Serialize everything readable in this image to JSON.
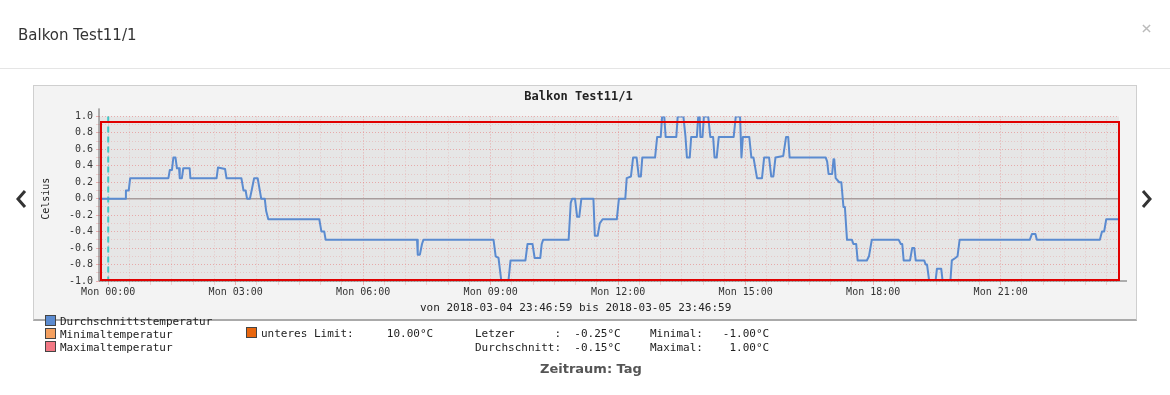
{
  "chart_data": {
    "type": "line",
    "title": "Balkon Test11/1",
    "ylabel": "Celsius",
    "xlim": [
      "2018-03-04T23:47",
      "2018-03-05T23:47"
    ],
    "xticks": [
      {
        "value": "2018-03-05T00:00",
        "label": "Mon 00:00"
      },
      {
        "value": "2018-03-05T00:30",
        "label": null
      },
      {
        "value": "2018-03-05T01:00",
        "label": null
      },
      {
        "value": "2018-03-05T01:30",
        "label": null
      },
      {
        "value": "2018-03-05T02:00",
        "label": null
      },
      {
        "value": "2018-03-05T02:30",
        "label": null
      },
      {
        "value": "2018-03-05T03:00",
        "label": "Mon 03:00"
      },
      {
        "value": "2018-03-05T03:30",
        "label": null
      },
      {
        "value": "2018-03-05T04:00",
        "label": null
      },
      {
        "value": "2018-03-05T04:30",
        "label": null
      },
      {
        "value": "2018-03-05T05:00",
        "label": null
      },
      {
        "value": "2018-03-05T05:30",
        "label": null
      },
      {
        "value": "2018-03-05T06:00",
        "label": "Mon 06:00"
      },
      {
        "value": "2018-03-05T06:30",
        "label": null
      },
      {
        "value": "2018-03-05T07:00",
        "label": null
      },
      {
        "value": "2018-03-05T07:30",
        "label": null
      },
      {
        "value": "2018-03-05T08:00",
        "label": null
      },
      {
        "value": "2018-03-05T08:30",
        "label": null
      },
      {
        "value": "2018-03-05T09:00",
        "label": "Mon 09:00"
      },
      {
        "value": "2018-03-05T09:30",
        "label": null
      },
      {
        "value": "2018-03-05T10:00",
        "label": null
      },
      {
        "value": "2018-03-05T10:30",
        "label": null
      },
      {
        "value": "2018-03-05T11:00",
        "label": null
      },
      {
        "value": "2018-03-05T11:30",
        "label": null
      },
      {
        "value": "2018-03-05T12:00",
        "label": "Mon 12:00"
      },
      {
        "value": "2018-03-05T12:30",
        "label": null
      },
      {
        "value": "2018-03-05T13:00",
        "label": null
      },
      {
        "value": "2018-03-05T13:30",
        "label": null
      },
      {
        "value": "2018-03-05T14:00",
        "label": null
      },
      {
        "value": "2018-03-05T14:30",
        "label": null
      },
      {
        "value": "2018-03-05T15:00",
        "label": "Mon 15:00"
      },
      {
        "value": "2018-03-05T15:30",
        "label": null
      },
      {
        "value": "2018-03-05T16:00",
        "label": null
      },
      {
        "value": "2018-03-05T16:30",
        "label": null
      },
      {
        "value": "2018-03-05T17:00",
        "label": null
      },
      {
        "value": "2018-03-05T17:30",
        "label": null
      },
      {
        "value": "2018-03-05T18:00",
        "label": "Mon 18:00"
      },
      {
        "value": "2018-03-05T18:30",
        "label": null
      },
      {
        "value": "2018-03-05T19:00",
        "label": null
      },
      {
        "value": "2018-03-05T19:30",
        "label": null
      },
      {
        "value": "2018-03-05T20:00",
        "label": null
      },
      {
        "value": "2018-03-05T20:30",
        "label": null
      },
      {
        "value": "2018-03-05T21:00",
        "label": "Mon 21:00"
      },
      {
        "value": "2018-03-05T21:30",
        "label": null
      },
      {
        "value": "2018-03-05T22:00",
        "label": null
      },
      {
        "value": "2018-03-05T22:30",
        "label": null
      },
      {
        "value": "2018-03-05T23:00",
        "label": null
      },
      {
        "value": "2018-03-05T23:30",
        "label": null
      }
    ],
    "ylim": [
      -1,
      1
    ],
    "yticks": [
      {
        "value": -1,
        "label": "-1.0"
      },
      {
        "value": -0.9,
        "label": null
      },
      {
        "value": -0.8,
        "label": "-0.8"
      },
      {
        "value": -0.7,
        "label": null
      },
      {
        "value": -0.6,
        "label": "-0.6"
      },
      {
        "value": -0.5,
        "label": null
      },
      {
        "value": -0.4,
        "label": "-0.4"
      },
      {
        "value": -0.3,
        "label": null
      },
      {
        "value": -0.2,
        "label": "-0.2"
      },
      {
        "value": -0.1,
        "label": null
      },
      {
        "value": 0,
        "label": "0.0"
      },
      {
        "value": 0.1,
        "label": null
      },
      {
        "value": 0.2,
        "label": "0.2"
      },
      {
        "value": 0.3,
        "label": null
      },
      {
        "value": 0.4,
        "label": "0.4"
      },
      {
        "value": 0.5,
        "label": null
      },
      {
        "value": 0.6,
        "label": "0.6"
      },
      {
        "value": 0.7,
        "label": null
      },
      {
        "value": 0.8,
        "label": "0.8"
      },
      {
        "value": 0.9,
        "label": null
      },
      {
        "value": 1,
        "label": "1.0"
      }
    ],
    "grid": true,
    "legend": "bottom left",
    "marker": "none",
    "line_style": "solid",
    "ref_lines": [
      {
        "axis": "y",
        "value": 0,
        "color": "#a89c9c",
        "line_style": "solid"
      },
      {
        "axis": "x",
        "value": "2018-03-05T00:00",
        "color": "#40c8c8",
        "line_style": "dashed"
      }
    ],
    "series": [
      {
        "name": "Durchschnittstemperatur",
        "color": "#5b8bd0",
        "x": [
          "2018-03-04T23:47",
          "2018-03-05T00:24",
          "2018-03-05T00:25",
          "2018-03-05T00:29",
          "2018-03-05T00:31",
          "2018-03-05T01:25",
          "2018-03-05T01:27",
          "2018-03-05T01:30",
          "2018-03-05T01:32",
          "2018-03-05T01:35",
          "2018-03-05T01:37",
          "2018-03-05T01:40",
          "2018-03-05T01:41",
          "2018-03-05T01:44",
          "2018-03-05T01:46",
          "2018-03-05T01:55",
          "2018-03-05T01:56",
          "2018-03-05T02:33",
          "2018-03-05T02:35",
          "2018-03-05T02:45",
          "2018-03-05T02:47",
          "2018-03-05T03:08",
          "2018-03-05T03:11",
          "2018-03-05T03:14",
          "2018-03-05T03:16",
          "2018-03-05T03:20",
          "2018-03-05T03:23",
          "2018-03-05T03:26",
          "2018-03-05T03:31",
          "2018-03-05T03:34",
          "2018-03-05T03:36",
          "2018-03-05T03:41",
          "2018-03-05T03:43",
          "2018-03-05T03:44",
          "2018-03-05T03:46",
          "2018-03-05T04:58",
          "2018-03-05T05:01",
          "2018-03-05T05:05",
          "2018-03-05T05:07",
          "2018-03-05T07:16",
          "2018-03-05T07:17",
          "2018-03-05T07:20",
          "2018-03-05T07:23",
          "2018-03-05T07:25",
          "2018-03-05T09:04",
          "2018-03-05T09:07",
          "2018-03-05T09:11",
          "2018-03-05T09:15",
          "2018-03-05T09:25",
          "2018-03-05T09:28",
          "2018-03-05T09:49",
          "2018-03-05T09:52",
          "2018-03-05T09:59",
          "2018-03-05T10:02",
          "2018-03-05T10:10",
          "2018-03-05T10:12",
          "2018-03-05T10:14",
          "2018-03-05T10:50",
          "2018-03-05T10:53",
          "2018-03-05T10:55",
          "2018-03-05T10:59",
          "2018-03-05T11:02",
          "2018-03-05T11:05",
          "2018-03-05T11:08",
          "2018-03-05T11:25",
          "2018-03-05T11:27",
          "2018-03-05T11:31",
          "2018-03-05T11:34",
          "2018-03-05T11:38",
          "2018-03-05T11:58",
          "2018-03-05T12:01",
          "2018-03-05T12:10",
          "2018-03-05T12:12",
          "2018-03-05T12:18",
          "2018-03-05T12:21",
          "2018-03-05T12:26",
          "2018-03-05T12:29",
          "2018-03-05T12:32",
          "2018-03-05T12:34",
          "2018-03-05T12:52",
          "2018-03-05T12:55",
          "2018-03-05T13:00",
          "2018-03-05T13:02",
          "2018-03-05T13:05",
          "2018-03-05T13:07",
          "2018-03-05T13:22",
          "2018-03-05T13:24",
          "2018-03-05T13:32",
          "2018-03-05T13:35",
          "2018-03-05T13:37",
          "2018-03-05T13:41",
          "2018-03-05T13:43",
          "2018-03-05T13:51",
          "2018-03-05T13:53",
          "2018-03-05T13:55",
          "2018-03-05T13:56",
          "2018-03-05T13:59",
          "2018-03-05T14:01",
          "2018-03-05T14:07",
          "2018-03-05T14:10",
          "2018-03-05T14:14",
          "2018-03-05T14:16",
          "2018-03-05T14:19",
          "2018-03-05T14:22",
          "2018-03-05T14:43",
          "2018-03-05T14:46",
          "2018-03-05T14:52",
          "2018-03-05T14:54",
          "2018-03-05T14:56",
          "2018-03-05T15:05",
          "2018-03-05T15:08",
          "2018-03-05T15:11",
          "2018-03-05T15:16",
          "2018-03-05T15:23",
          "2018-03-05T15:26",
          "2018-03-05T15:33",
          "2018-03-05T15:36",
          "2018-03-05T15:39",
          "2018-03-05T15:42",
          "2018-03-05T15:53",
          "2018-03-05T15:57",
          "2018-03-05T16:00",
          "2018-03-05T16:02",
          "2018-03-05T16:53",
          "2018-03-05T16:55",
          "2018-03-05T16:57",
          "2018-03-05T17:02",
          "2018-03-05T17:04",
          "2018-03-05T17:05",
          "2018-03-05T17:07",
          "2018-03-05T17:12",
          "2018-03-05T17:15",
          "2018-03-05T17:18",
          "2018-03-05T17:20",
          "2018-03-05T17:23",
          "2018-03-05T17:30",
          "2018-03-05T17:32",
          "2018-03-05T17:36",
          "2018-03-05T17:38",
          "2018-03-05T17:51",
          "2018-03-05T17:54",
          "2018-03-05T17:58",
          "2018-03-05T18:36",
          "2018-03-05T18:39",
          "2018-03-05T18:41",
          "2018-03-05T18:43",
          "2018-03-05T18:52",
          "2018-03-05T18:55",
          "2018-03-05T18:58",
          "2018-03-05T19:00",
          "2018-03-05T19:12",
          "2018-03-05T19:14",
          "2018-03-05T19:16",
          "2018-03-05T19:19",
          "2018-03-05T19:28",
          "2018-03-05T19:30",
          "2018-03-05T19:36",
          "2018-03-05T19:38",
          "2018-03-05T19:49",
          "2018-03-05T19:51",
          "2018-03-05T19:56",
          "2018-03-05T19:59",
          "2018-03-05T20:02",
          "2018-03-05T21:41",
          "2018-03-05T21:44",
          "2018-03-05T21:49",
          "2018-03-05T21:51",
          "2018-03-05T23:20",
          "2018-03-05T23:23",
          "2018-03-05T23:26",
          "2018-03-05T23:29",
          "2018-03-05T23:47"
        ],
        "values": [
          0,
          0,
          0.1,
          0.1,
          0.25,
          0.25,
          0.35,
          0.35,
          0.5,
          0.5,
          0.37,
          0.37,
          0.25,
          0.25,
          0.37,
          0.37,
          0.25,
          0.25,
          0.38,
          0.36,
          0.25,
          0.25,
          0.1,
          0.1,
          0,
          0,
          0.12,
          0.25,
          0.25,
          0.1,
          0,
          0,
          -0.15,
          -0.15,
          -0.25,
          -0.25,
          -0.4,
          -0.4,
          -0.5,
          -0.5,
          -0.68,
          -0.68,
          -0.55,
          -0.5,
          -0.5,
          -0.7,
          -0.72,
          -1.0,
          -1.0,
          -0.75,
          -0.75,
          -0.55,
          -0.55,
          -0.72,
          -0.72,
          -0.55,
          -0.5,
          -0.5,
          -0.05,
          0,
          0,
          -0.22,
          -0.22,
          0,
          0,
          -0.45,
          -0.45,
          -0.3,
          -0.25,
          -0.25,
          0,
          0,
          0.25,
          0.27,
          0.5,
          0.5,
          0.27,
          0.27,
          0.5,
          0.5,
          0.75,
          0.75,
          1.0,
          1.0,
          0.75,
          0.75,
          1.0,
          1.0,
          0.75,
          0.5,
          0.5,
          0.75,
          0.75,
          1.0,
          1.0,
          0.75,
          0.75,
          1.0,
          1.0,
          0.75,
          0.75,
          0.5,
          0.5,
          0.75,
          0.75,
          1.0,
          1.0,
          0.5,
          0.75,
          0.75,
          0.5,
          0.5,
          0.25,
          0.25,
          0.5,
          0.5,
          0.27,
          0.27,
          0.5,
          0.52,
          0.75,
          0.75,
          0.5,
          0.5,
          0.45,
          0.3,
          0.3,
          0.48,
          0.48,
          0.25,
          0.2,
          0.2,
          -0.1,
          -0.1,
          -0.5,
          -0.5,
          -0.55,
          -0.55,
          -0.75,
          -0.75,
          -0.7,
          -0.5,
          -0.5,
          -0.55,
          -0.55,
          -0.75,
          -0.75,
          -0.6,
          -0.6,
          -0.75,
          -0.75,
          -0.8,
          -0.8,
          -1.0,
          -1.0,
          -0.85,
          -0.85,
          -1.0,
          -1.0,
          -0.75,
          -0.72,
          -0.7,
          -0.5,
          -0.5,
          -0.43,
          -0.43,
          -0.5,
          -0.5,
          -0.4,
          -0.4,
          -0.25,
          -0.25
        ]
      },
      {
        "name": "Minimaltemperatur",
        "color": "#f4a060"
      },
      {
        "name": "Maximaltemperatur",
        "color": "#f27884"
      }
    ],
    "annotations": [
      "Balkon Test11/1",
      "von 2018-03-04 23:46:59 bis 2018-03-05 23:46:59",
      "unteres Limit:     10.00°C",
      "Letzer      :  -0.25°C",
      "Minimal:   -1.00°C",
      "Durchschnitt:  -0.15°C",
      "Maximal:    1.00°C",
      "Zeitraum: Tag"
    ]
  }
}
